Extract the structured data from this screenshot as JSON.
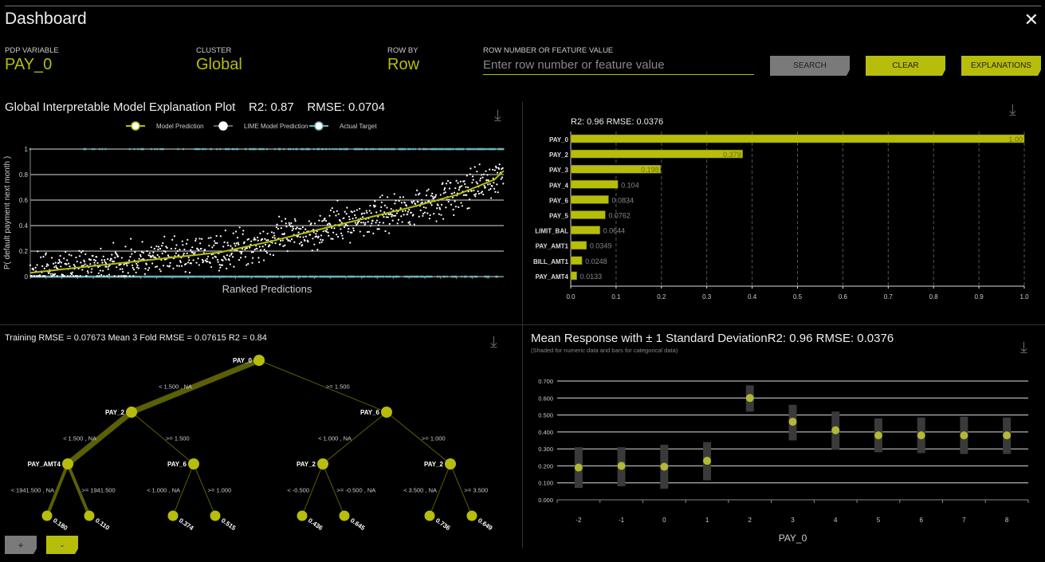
{
  "header": {
    "title": "Dashboard",
    "close_icon": "close-x-icon"
  },
  "controls": {
    "pdp_variable": {
      "label": "PDP VARIABLE",
      "value": "PAY_0"
    },
    "cluster": {
      "label": "CLUSTER",
      "value": "Global"
    },
    "row_by": {
      "label": "ROW BY",
      "value": "Row"
    },
    "row_number": {
      "label": "ROW NUMBER OR FEATURE VALUE",
      "value": "",
      "placeholder": "Enter row number or feature value"
    },
    "search_label": "SEARCH",
    "clear_label": "CLEAR",
    "explanations_label": "EXPLANATIONS"
  },
  "colors": {
    "accent": "#b7bd0b",
    "search_button": "#7a7a7a",
    "actual_target": "#6fb0b8",
    "lime": "#ffffff",
    "tree_edge": "#5b5f05",
    "sd_bar": "#3a3a3a"
  },
  "tree": {
    "title": "Training RMSE = 0.07673 Mean 3 Fold RMSE = 0.07615 R2 = 0.84",
    "zoom_in_label": "+",
    "zoom_out_label": "-"
  },
  "chart_data": [
    {
      "type": "scatter",
      "title": "Global Interpretable Model Explanation Plot",
      "subtitle": "R2: 0.87    RMSE: 0.0704",
      "xlabel": "Ranked Predictions",
      "ylabel": "P( default payment next month )",
      "ylim": [
        0,
        1
      ],
      "yticks": [
        "0",
        "0.2",
        "0.4",
        "0.6",
        "0.8",
        "1"
      ],
      "grid": true,
      "legend": "top-center",
      "series": [
        {
          "name": "Model Prediction",
          "kind": "line",
          "x_rank_fraction": [
            0,
            0.1,
            0.2,
            0.3,
            0.4,
            0.5,
            0.6,
            0.7,
            0.8,
            0.9,
            0.98,
            1
          ],
          "y": [
            0.03,
            0.07,
            0.11,
            0.15,
            0.19,
            0.27,
            0.36,
            0.45,
            0.54,
            0.64,
            0.76,
            0.83
          ]
        },
        {
          "name": "LIME Model Prediction",
          "kind": "points"
        },
        {
          "name": "Actual Target",
          "kind": "points",
          "values": [
            0,
            1
          ]
        }
      ]
    },
    {
      "type": "bar",
      "orientation": "horizontal",
      "title": "R2: 0.96 RMSE: 0.0376",
      "xlim": [
        0,
        1
      ],
      "xticks": [
        "0.0",
        "0.1",
        "0.2",
        "0.3",
        "0.4",
        "0.5",
        "0.6",
        "0.7",
        "0.8",
        "0.9",
        "1.0"
      ],
      "grid": true,
      "categories": [
        "PAY_0",
        "PAY_2",
        "PAY_3",
        "PAY_4",
        "PAY_6",
        "PAY_5",
        "LIMIT_BAL",
        "PAY_AMT1",
        "BILL_AMT1",
        "PAY_AMT4"
      ],
      "values": [
        1.0,
        0.379,
        0.198,
        0.104,
        0.0834,
        0.0762,
        0.0644,
        0.0349,
        0.0248,
        0.0133
      ],
      "labels": [
        "1.00",
        "0.379",
        "0.198",
        "0.104",
        "0.0834",
        "0.0762",
        "0.0644",
        "0.0349",
        "0.0248",
        "0.0133"
      ]
    },
    {
      "type": "scatter",
      "title": "Mean Response with ± 1 Standard DeviationR2: 0.96 RMSE: 0.0376",
      "subtitle": "(Shaded for numeric data and bars for categorical data)",
      "xlabel": "PAY_0",
      "ylim": [
        0,
        0.7
      ],
      "yticks": [
        "0.000",
        "0.100",
        "0.200",
        "0.300",
        "0.400",
        "0.500",
        "0.600",
        "0.700"
      ],
      "grid": true,
      "categories": [
        "-2",
        "-1",
        "0",
        "1",
        "2",
        "3",
        "4",
        "5",
        "6",
        "7",
        "8"
      ],
      "mean": [
        0.19,
        0.2,
        0.195,
        0.23,
        0.6,
        0.46,
        0.41,
        0.38,
        0.38,
        0.38,
        0.38
      ],
      "lower": [
        0.07,
        0.08,
        0.065,
        0.115,
        0.52,
        0.35,
        0.295,
        0.28,
        0.275,
        0.27,
        0.27
      ],
      "upper": [
        0.31,
        0.31,
        0.325,
        0.34,
        0.675,
        0.56,
        0.52,
        0.48,
        0.485,
        0.49,
        0.485
      ]
    }
  ],
  "tree_nodes": [
    {
      "label": "PAY_0",
      "children": [
        1,
        2
      ]
    },
    {
      "label": "PAY_2",
      "edge": "< 1.500 , NA",
      "heavy": true,
      "children": [
        3,
        4
      ]
    },
    {
      "label": "PAY_6",
      "edge": ">= 1.500",
      "children": [
        5,
        6
      ]
    },
    {
      "label": "PAY_AMT4",
      "edge": "< 1.500 , NA",
      "heavy": true,
      "children": [
        7,
        8
      ]
    },
    {
      "label": "PAY_6",
      "edge": ">= 1.500",
      "children": [
        9,
        10
      ]
    },
    {
      "label": "PAY_2",
      "edge": "< 1.000 , NA",
      "children": [
        11,
        12
      ]
    },
    {
      "label": "PAY_2",
      "edge": ">= 1.000",
      "children": [
        13,
        14
      ]
    },
    {
      "value": "0.180",
      "edge": "< 1941.500 , NA",
      "heavy": true
    },
    {
      "value": "0.110",
      "edge": ">= 1941.500",
      "heavy": true
    },
    {
      "value": "0.374",
      "edge": "< 1.000 , NA"
    },
    {
      "value": "0.515",
      "edge": ">= 1.000"
    },
    {
      "value": "0.436",
      "edge": "< -0.500"
    },
    {
      "value": "0.645",
      "edge": ">= -0.500 , NA"
    },
    {
      "value": "0.736",
      "edge": "< 3.500 , NA"
    },
    {
      "value": "0.649",
      "edge": ">= 3.500"
    }
  ]
}
